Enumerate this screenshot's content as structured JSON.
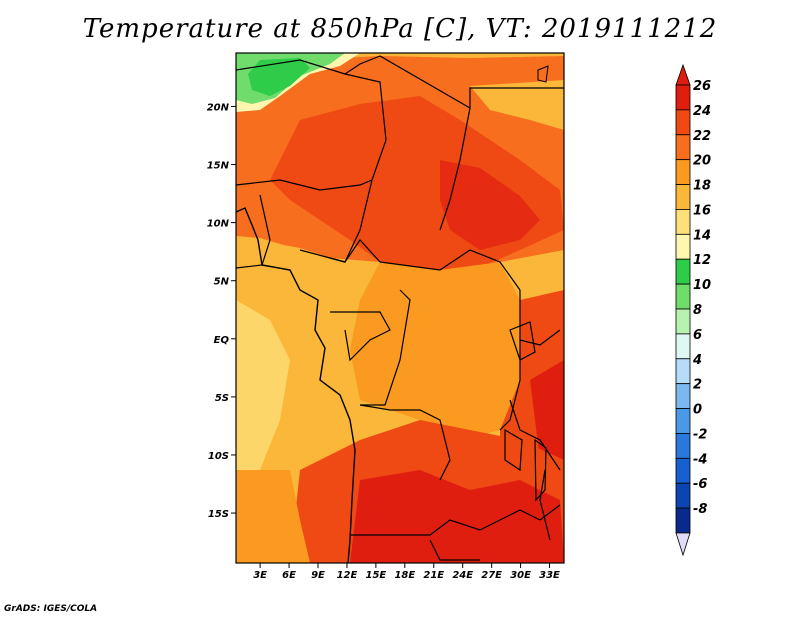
{
  "title": "Temperature at 850hPa [C], VT: 2019111212",
  "credit": "GrADS: IGES/COLA",
  "map": {
    "lat_ticks": [
      {
        "label": "20N",
        "value": 20
      },
      {
        "label": "15N",
        "value": 15
      },
      {
        "label": "10N",
        "value": 10
      },
      {
        "label": "5N",
        "value": 5
      },
      {
        "label": "EQ",
        "value": 0
      },
      {
        "label": "5S",
        "value": -5
      },
      {
        "label": "10S",
        "value": -10
      },
      {
        "label": "15S",
        "value": -15
      }
    ],
    "lon_ticks": [
      {
        "label": "3E",
        "value": 3
      },
      {
        "label": "6E",
        "value": 6
      },
      {
        "label": "9E",
        "value": 9
      },
      {
        "label": "12E",
        "value": 12
      },
      {
        "label": "15E",
        "value": 15
      },
      {
        "label": "18E",
        "value": 18
      },
      {
        "label": "21E",
        "value": 21
      },
      {
        "label": "24E",
        "value": 24
      },
      {
        "label": "27E",
        "value": 27
      },
      {
        "label": "30E",
        "value": 30
      },
      {
        "label": "33E",
        "value": 33
      }
    ]
  },
  "colorbar": {
    "levels": [
      26,
      24,
      22,
      20,
      18,
      16,
      14,
      12,
      10,
      8,
      6,
      4,
      2,
      0,
      -2,
      -4,
      -6,
      -8
    ],
    "colors": [
      "#e01e10",
      "#f04a14",
      "#f66e1e",
      "#fa9a20",
      "#fbb73a",
      "#fde07a",
      "#fff6b0",
      "#2ecc48",
      "#6fdc6c",
      "#b8f2b0",
      "#dff8f4",
      "#b6dcf8",
      "#7ab8ef",
      "#4a98e6",
      "#2a78dc",
      "#1860d0",
      "#0c44b0",
      "#082a8c",
      "#04105e"
    ],
    "upper_arrow_color": "#e01e10",
    "lower_arrow_color": "#e0dcf8"
  }
}
